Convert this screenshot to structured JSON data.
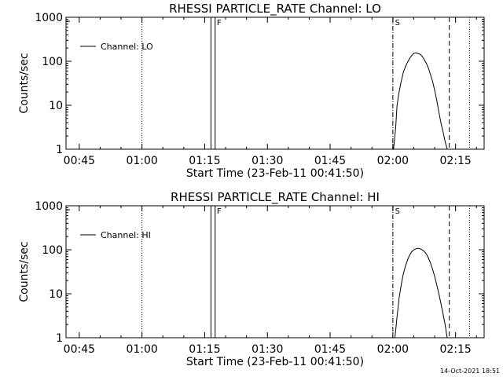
{
  "footer": {
    "timestamp": "14-Oct-2021 18:51"
  },
  "chart_data": [
    {
      "type": "line",
      "title": "RHESSI PARTICLE_RATE Channel: LO",
      "xlabel": "Start Time (23-Feb-11 00:41:50)",
      "ylabel": "Counts/sec",
      "yscale": "log",
      "ylim": [
        1,
        1000
      ],
      "xlim": [
        "00:41:50",
        "02:21:50"
      ],
      "xticks": [
        "00:45",
        "01:00",
        "01:15",
        "01:30",
        "01:45",
        "02:00",
        "02:15"
      ],
      "yticks": [
        "1",
        "10",
        "100",
        "1000"
      ],
      "legend": {
        "placement": "top-left",
        "entries": [
          "Channel: LO"
        ]
      },
      "series": [
        {
          "name": "Channel: LO",
          "x": [
            "02:00:10",
            "02:00:40",
            "02:01:00",
            "02:01:30",
            "02:02:00",
            "02:02:30",
            "02:03:00",
            "02:03:30",
            "02:04:00",
            "02:04:30",
            "02:05:00",
            "02:05:30",
            "02:06:00",
            "02:06:30",
            "02:07:00",
            "02:07:30",
            "02:08:00",
            "02:08:30",
            "02:09:00",
            "02:09:30",
            "02:10:00",
            "02:10:30",
            "02:11:00",
            "02:11:30",
            "02:12:00",
            "02:12:30",
            "02:13:00"
          ],
          "values": [
            1,
            3,
            10,
            20,
            35,
            55,
            75,
            95,
            115,
            135,
            150,
            155,
            150,
            145,
            130,
            110,
            90,
            70,
            50,
            35,
            22,
            13,
            7,
            4,
            2.5,
            1.5,
            1
          ]
        }
      ],
      "vertical_markers": [
        {
          "time": "01:00:00",
          "style": "dotted"
        },
        {
          "time": "01:16:30",
          "style": "solid"
        },
        {
          "time": "01:17:30",
          "style": "solid"
        },
        {
          "time": "02:00:00",
          "style": "dash-dot",
          "label": "S"
        },
        {
          "time": "02:13:30",
          "style": "dashed"
        },
        {
          "time": "02:18:20",
          "style": "dotted"
        }
      ],
      "marker_labels": [
        "F",
        "S"
      ]
    },
    {
      "type": "line",
      "title": "RHESSI PARTICLE_RATE Channel: HI",
      "xlabel": "Start Time (23-Feb-11 00:41:50)",
      "ylabel": "Counts/sec",
      "yscale": "log",
      "ylim": [
        1,
        1000
      ],
      "xlim": [
        "00:41:50",
        "02:21:50"
      ],
      "xticks": [
        "00:45",
        "01:00",
        "01:15",
        "01:30",
        "01:45",
        "02:00",
        "02:15"
      ],
      "yticks": [
        "1",
        "10",
        "100",
        "1000"
      ],
      "legend": {
        "placement": "top-left",
        "entries": [
          "Channel: HI"
        ]
      },
      "series": [
        {
          "name": "Channel: HI",
          "x": [
            "02:00:30",
            "02:01:00",
            "02:01:30",
            "02:02:00",
            "02:02:30",
            "02:03:00",
            "02:03:30",
            "02:04:00",
            "02:04:30",
            "02:05:00",
            "02:05:30",
            "02:06:00",
            "02:06:30",
            "02:07:00",
            "02:07:30",
            "02:08:00",
            "02:08:30",
            "02:09:00",
            "02:09:30",
            "02:10:00",
            "02:10:30",
            "02:11:00",
            "02:11:30",
            "02:12:00",
            "02:12:30",
            "02:13:00"
          ],
          "values": [
            1,
            3,
            8,
            16,
            28,
            42,
            58,
            75,
            90,
            100,
            105,
            108,
            105,
            100,
            92,
            80,
            65,
            50,
            36,
            25,
            16,
            10,
            6,
            3.5,
            2,
            1
          ]
        }
      ],
      "vertical_markers": [
        {
          "time": "01:00:00",
          "style": "dotted"
        },
        {
          "time": "01:16:30",
          "style": "solid"
        },
        {
          "time": "01:17:30",
          "style": "solid"
        },
        {
          "time": "02:00:00",
          "style": "dash-dot",
          "label": "S"
        },
        {
          "time": "02:13:30",
          "style": "dashed"
        },
        {
          "time": "02:18:20",
          "style": "dotted"
        }
      ],
      "marker_labels": [
        "F",
        "S"
      ]
    }
  ]
}
